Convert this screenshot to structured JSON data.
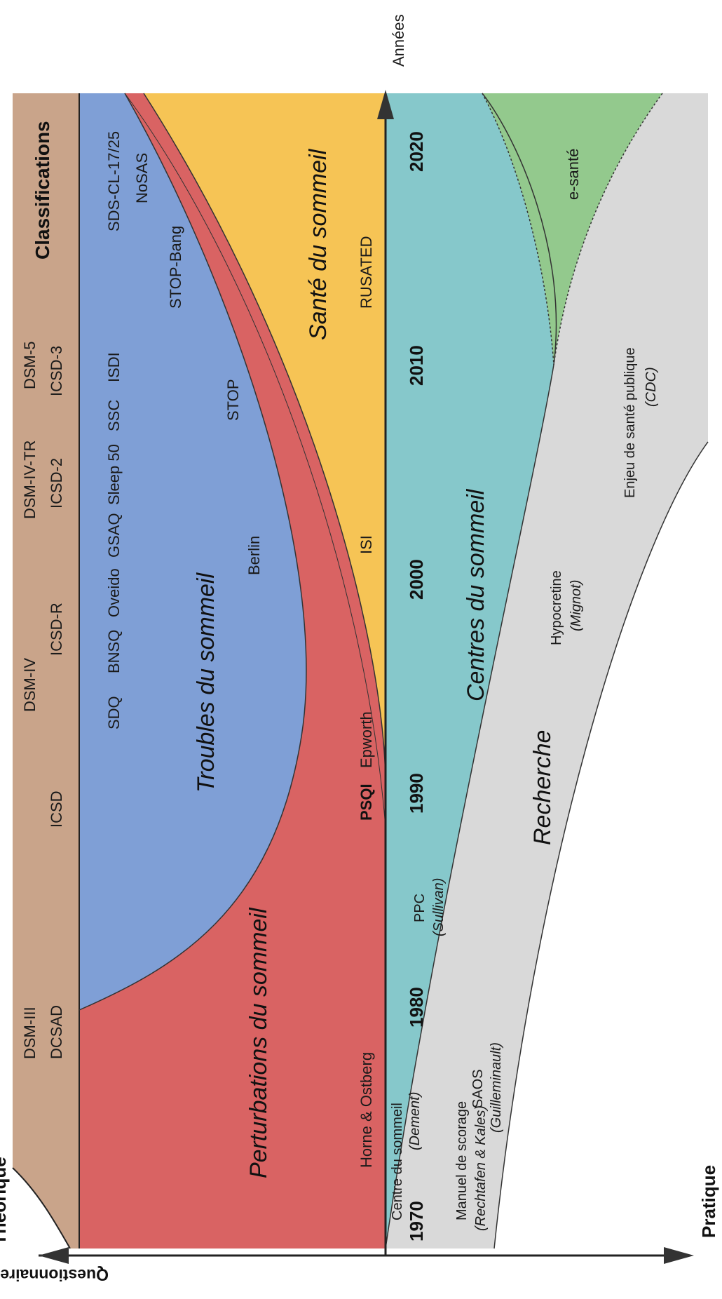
{
  "axes": {
    "years_label": "Années",
    "top_label": "Théorique",
    "bottom_label": "Pratique",
    "left_axis_label": "Questionnaires et concepts"
  },
  "years": [
    "1970",
    "1980",
    "1990",
    "2000",
    "2010",
    "2020"
  ],
  "regions": {
    "classifications": {
      "title": "Classifications",
      "color": "#C9A48A"
    },
    "troubles": {
      "title": "Troubles du sommeil",
      "color": "#7F9FD6"
    },
    "perturbations": {
      "title": "Perturbations du sommeil",
      "color": "#D96363"
    },
    "sante": {
      "title": "Santé du sommeil",
      "color": "#F6C455"
    },
    "centres": {
      "title": "Centres du sommeil",
      "color": "#86C8CB"
    },
    "recherche": {
      "title": "Recherche",
      "color": "#D9D9D9"
    },
    "esante": {
      "title": "e-santé",
      "color": "#93C98D"
    }
  },
  "classifications_items": [
    "DSM-III",
    "DCSAD",
    "ICSD",
    "DSM-IV",
    "ICSD-R",
    "DSM-IV-TR",
    "ICSD-2",
    "DSM-5",
    "ICSD-3"
  ],
  "questionnaires_blue": [
    "SDQ",
    "BNSQ",
    "Oveido",
    "GSAQ",
    "Sleep 50",
    "SSC",
    "ISDI",
    "SDS-CL-17/25",
    "NoSAS",
    "STOP-Bang",
    "STOP",
    "Berlin"
  ],
  "questionnaires_red": [
    "Horne & Ostberg",
    "PSQI",
    "Epworth",
    "ISI"
  ],
  "questionnaires_yellow": [
    "RUSATED"
  ],
  "centres_items": {
    "centre_line1": "Centre du sommeil",
    "centre_line2": "(Dement)",
    "ppc_line1": "PPC",
    "ppc_line2": "(Sullivan)"
  },
  "recherche_items": {
    "manuel_line1": "Manuel de scorage",
    "manuel_line2": "(Rechtafen & Kales)",
    "saos_line1": "SAOS",
    "saos_line2": "(Guilleminault)",
    "hypo_line1": "Hypocretine",
    "hypo_line2": "(Mignot)",
    "enjeu_line1": "Enjeu de santé publique",
    "enjeu_line2": "(CDC)"
  }
}
